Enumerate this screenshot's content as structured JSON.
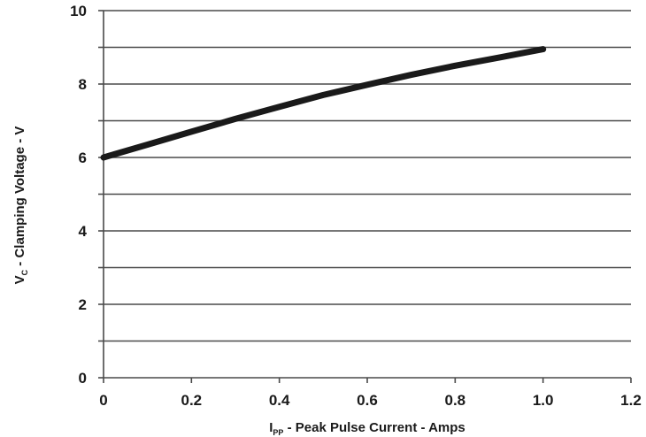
{
  "chart_data": {
    "type": "line",
    "title": "",
    "xlabel": {
      "main": "I",
      "sub": "PP",
      "rest": " - Peak Pulse Current - Amps"
    },
    "ylabel": {
      "main": "V",
      "sub": "C",
      "rest": " - Clamping Voltage - V"
    },
    "xlim": [
      0,
      1.2
    ],
    "ylim": [
      0,
      10
    ],
    "x_ticks": [
      "0",
      "0.2",
      "0.4",
      "0.6",
      "0.8",
      "1.0",
      "1.2"
    ],
    "y_ticks": [
      "0",
      "2",
      "4",
      "6",
      "8",
      "10"
    ],
    "grid": true,
    "legend": "none",
    "series": [
      {
        "color": "#1a1a1a",
        "x": [
          0,
          0.1,
          0.2,
          0.3,
          0.4,
          0.5,
          0.6,
          0.7,
          0.8,
          0.9,
          1.0
        ],
        "y": [
          6.0,
          6.35,
          6.7,
          7.05,
          7.38,
          7.7,
          7.98,
          8.25,
          8.5,
          8.72,
          8.95
        ]
      }
    ]
  }
}
